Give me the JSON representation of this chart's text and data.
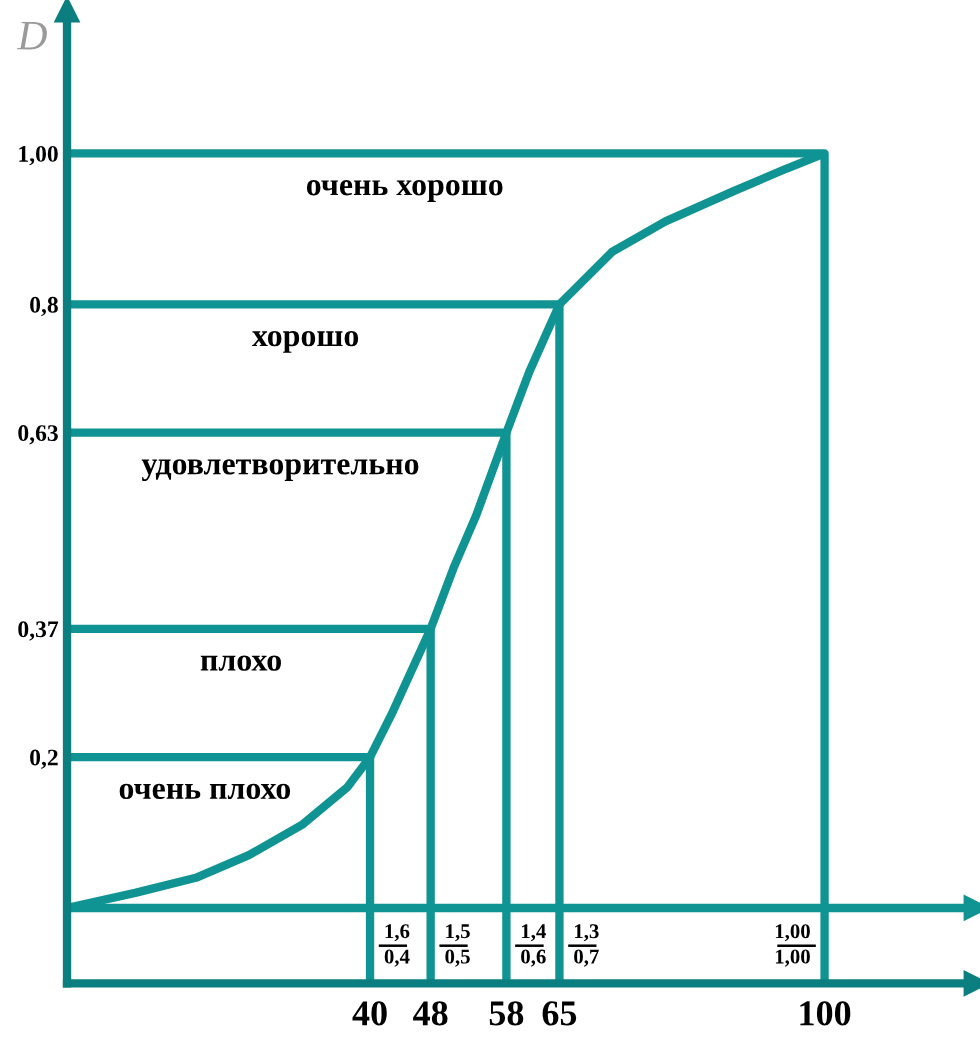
{
  "chart_data": {
    "type": "line",
    "ylabel": "D",
    "xlim": [
      0,
      120
    ],
    "xticks": [
      40,
      48,
      58,
      65,
      100
    ],
    "ylim": [
      -0.1,
      1.19
    ],
    "yticks": [
      {
        "value": 0.2,
        "label": "0,2"
      },
      {
        "value": 0.37,
        "label": "0,37"
      },
      {
        "value": 0.63,
        "label": "0,63"
      },
      {
        "value": 0.8,
        "label": "0,8"
      },
      {
        "value": 1.0,
        "label": "1,00"
      }
    ],
    "grid": false,
    "marker": "none",
    "line_style": "solid",
    "series": [
      {
        "color": "#109393",
        "x": [
          0,
          9,
          17,
          24,
          31,
          37,
          40,
          43,
          48,
          51,
          54,
          58,
          61,
          65,
          72,
          79,
          88,
          95,
          100
        ],
        "values": [
          0,
          0.02,
          0.04,
          0.07,
          0.11,
          0.16,
          0.2,
          0.26,
          0.37,
          0.45,
          0.52,
          0.63,
          0.71,
          0.8,
          0.87,
          0.91,
          0.95,
          0.98,
          1.0
        ]
      },
      {
        "color": "#109393",
        "x": [
          0,
          40,
          40
        ],
        "values": [
          0.2,
          0.2,
          -0.1
        ]
      },
      {
        "color": "#109393",
        "x": [
          0,
          48,
          48
        ],
        "values": [
          0.37,
          0.37,
          -0.1
        ]
      },
      {
        "color": "#109393",
        "x": [
          0,
          58,
          58
        ],
        "values": [
          0.63,
          0.63,
          -0.1
        ]
      },
      {
        "color": "#109393",
        "x": [
          0,
          65,
          65
        ],
        "values": [
          0.8,
          0.8,
          -0.1
        ]
      },
      {
        "color": "#109393",
        "x": [
          0,
          100,
          100
        ],
        "values": [
          1.0,
          1.0,
          -0.1
        ]
      }
    ],
    "ref_lines": [
      {
        "axis": "y",
        "value": 0,
        "color": "#109393"
      }
    ],
    "annotations": [
      "очень хорошо",
      "хорошо",
      "удовлетворительно",
      "плохо",
      "очень плохо",
      "1,6\n0,4",
      "1,5\n0,5",
      "1,4\n0,6",
      "1,3\n0,7",
      "1,00\n1,00"
    ]
  }
}
